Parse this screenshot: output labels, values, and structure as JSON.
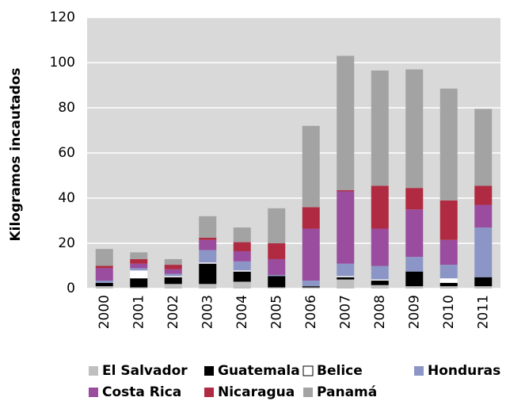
{
  "chart_data": {
    "type": "stacked_bar",
    "ylabel": "Kilogramos incautados",
    "categories": [
      "2000",
      "2001",
      "2002",
      "2003",
      "2004",
      "2005",
      "2006",
      "2007",
      "2008",
      "2009",
      "2010",
      "2011"
    ],
    "series": [
      {
        "name": "El Salvador",
        "color": "#bfbfbf",
        "values": [
          1,
          0.5,
          2,
          2,
          3,
          0.5,
          0.5,
          4,
          1.5,
          1,
          1,
          1
        ]
      },
      {
        "name": "Guatemala",
        "color": "#000000",
        "values": [
          1.5,
          4,
          3,
          9,
          4.5,
          5,
          0.5,
          1,
          2,
          6.5,
          1.5,
          4
        ]
      },
      {
        "name": "Belice",
        "color": "#ffffff",
        "values": [
          0,
          3.5,
          0.5,
          0.5,
          0.5,
          0,
          0,
          0.5,
          0.5,
          0,
          2,
          0
        ]
      },
      {
        "name": "Honduras",
        "color": "#8c96c6",
        "values": [
          1,
          1,
          1,
          5.5,
          4,
          0.5,
          2.5,
          5.5,
          6,
          6.5,
          6,
          22
        ]
      },
      {
        "name": "Costa Rica",
        "color": "#9a4c9e",
        "values": [
          5.5,
          2,
          2,
          4.5,
          4.5,
          7,
          23,
          32,
          16.5,
          21,
          11,
          10
        ]
      },
      {
        "name": "Nicaragua",
        "color": "#b02a41",
        "values": [
          1,
          2,
          2,
          1,
          4,
          7,
          9.5,
          0.5,
          19,
          9.5,
          17.5,
          8.5
        ]
      },
      {
        "name": "Panamá",
        "color": "#a3a3a3",
        "values": [
          7.5,
          3,
          2.5,
          9.5,
          6.5,
          15.5,
          36,
          59.5,
          51,
          52.5,
          49.5,
          34
        ]
      }
    ],
    "ylim": [
      0,
      120
    ],
    "yticks": [
      0,
      20,
      40,
      60,
      80,
      100,
      120
    ],
    "grid": true
  }
}
